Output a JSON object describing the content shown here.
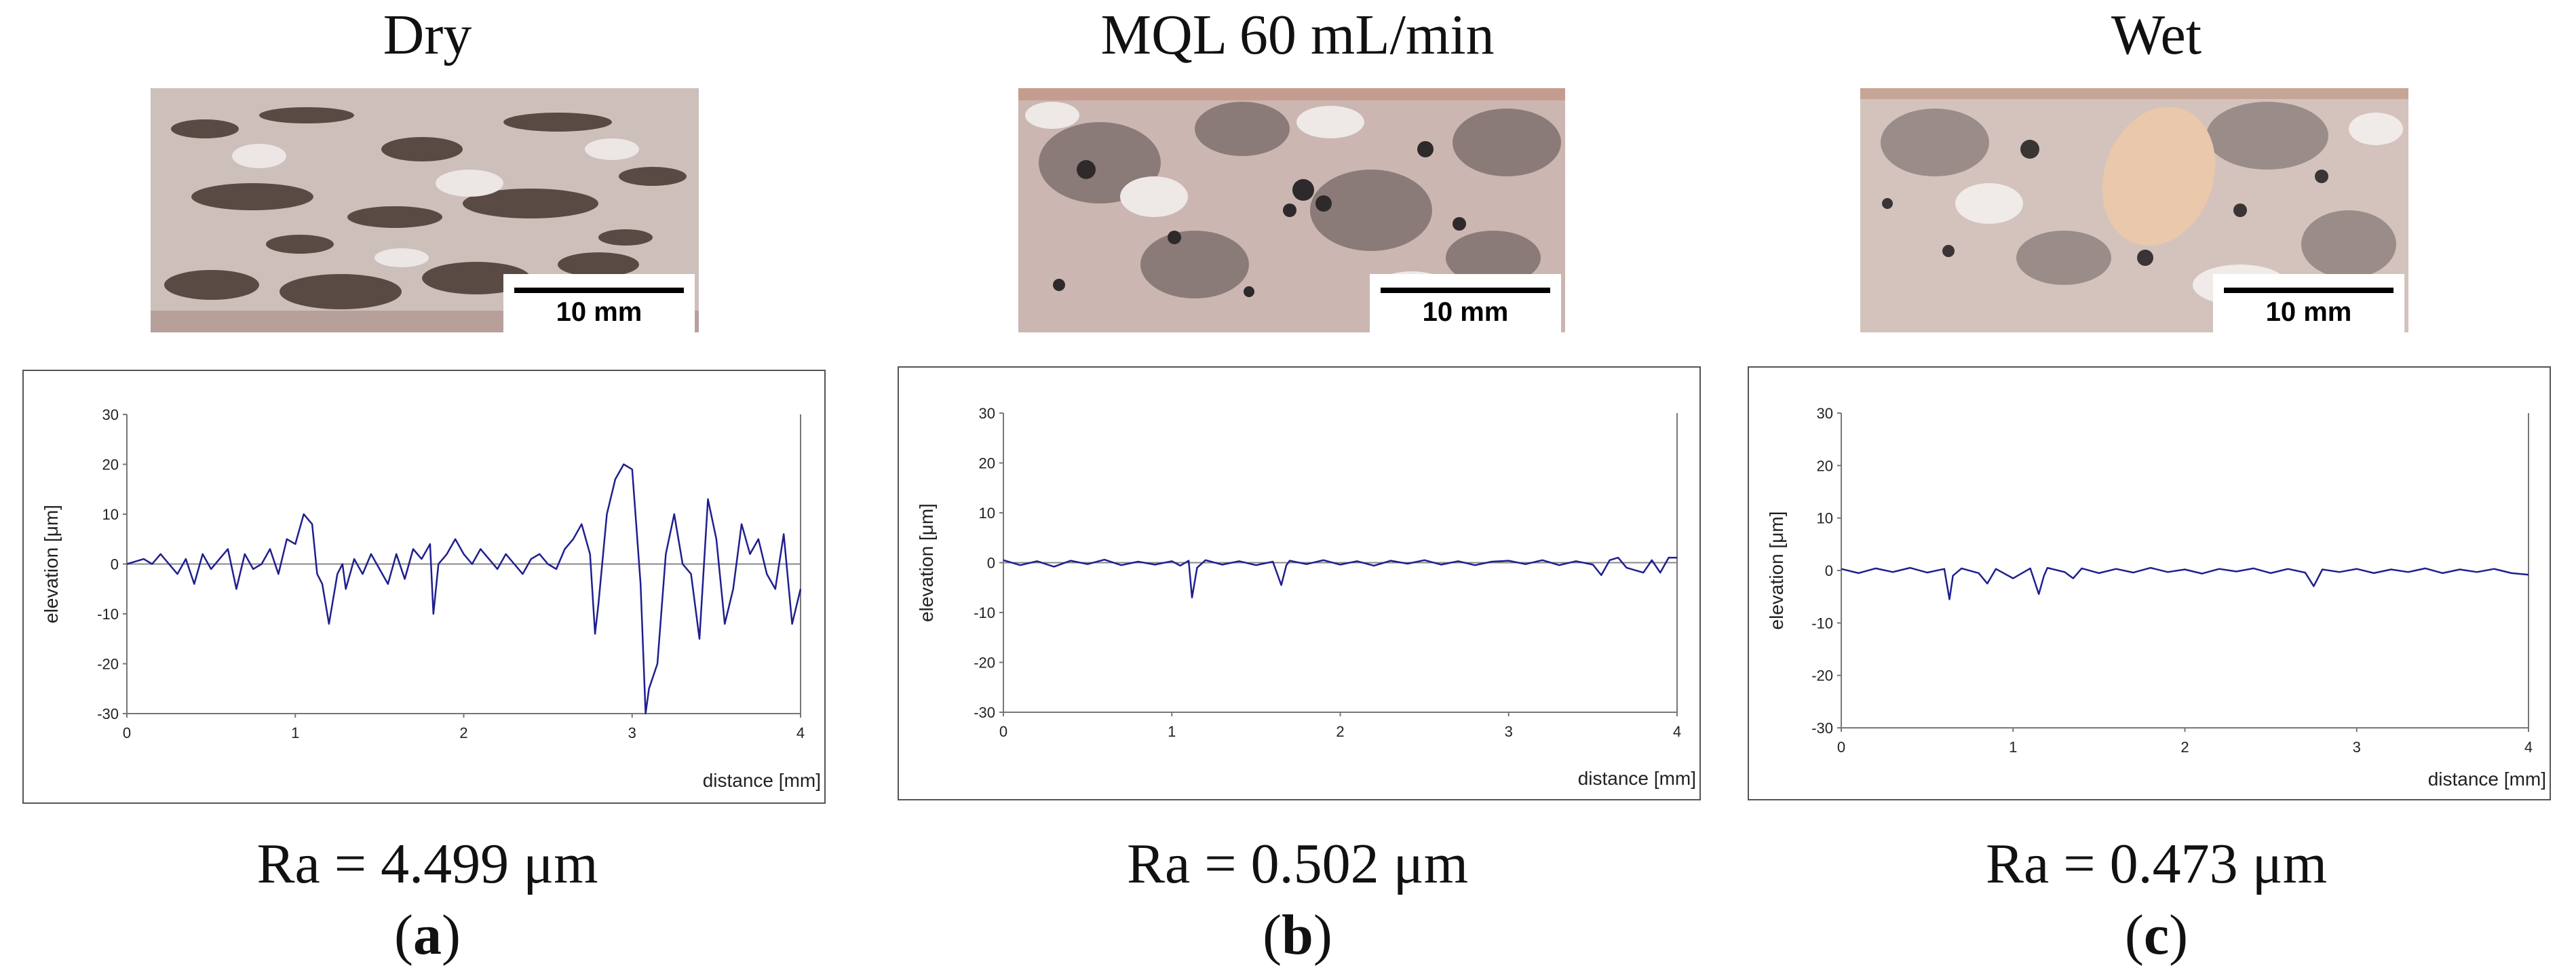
{
  "panels": [
    {
      "condition": "Dry",
      "scale_label": "10 mm",
      "ra": "Ra = 4.499 μm",
      "label_open": "(",
      "label_letter": "a",
      "label_close": ")"
    },
    {
      "condition": "MQL 60 mL/min",
      "scale_label": "10 mm",
      "ra": "Ra = 0.502 μm",
      "label_open": "(",
      "label_letter": "b",
      "label_close": ")"
    },
    {
      "condition": "Wet",
      "scale_label": "10 mm",
      "ra": "Ra = 0.473 μm",
      "label_open": "(",
      "label_letter": "c",
      "label_close": ")"
    }
  ],
  "chart_data": [
    {
      "type": "line",
      "xlabel": "distance [mm]",
      "ylabel": "elevation [μm]",
      "xlim": [
        0,
        4
      ],
      "ylim": [
        -30,
        30
      ],
      "xticks": [
        0,
        1,
        2,
        3,
        4
      ],
      "yticks": [
        30,
        20,
        10,
        0,
        -10,
        -20,
        -30
      ],
      "zero_line": true,
      "grid": false,
      "line_color": "#1f1f8f",
      "series": [
        {
          "x": [
            0,
            0.05,
            0.1,
            0.15,
            0.2,
            0.25,
            0.3,
            0.35,
            0.4,
            0.45,
            0.5,
            0.55,
            0.6,
            0.65,
            0.7,
            0.75,
            0.8,
            0.85,
            0.9,
            0.95,
            1.0,
            1.05,
            1.1,
            1.13,
            1.16,
            1.2,
            1.25,
            1.28,
            1.3,
            1.35,
            1.4,
            1.45,
            1.5,
            1.55,
            1.6,
            1.65,
            1.7,
            1.75,
            1.8,
            1.82,
            1.85,
            1.9,
            1.95,
            2.0,
            2.05,
            2.1,
            2.15,
            2.2,
            2.25,
            2.3,
            2.35,
            2.4,
            2.45,
            2.5,
            2.55,
            2.6,
            2.65,
            2.7,
            2.75,
            2.78,
            2.8,
            2.85,
            2.9,
            2.95,
            3.0,
            3.02,
            3.05,
            3.08,
            3.1,
            3.15,
            3.2,
            3.25,
            3.3,
            3.35,
            3.4,
            3.45,
            3.5,
            3.55,
            3.6,
            3.65,
            3.7,
            3.75,
            3.8,
            3.85,
            3.9,
            3.95,
            4.0
          ],
          "y": [
            0,
            0.5,
            1,
            0,
            2,
            0,
            -2,
            1,
            -4,
            2,
            -1,
            1,
            3,
            -5,
            2,
            -1,
            0,
            3,
            -2,
            5,
            4,
            10,
            8,
            -2,
            -4,
            -12,
            -2,
            0,
            -5,
            1,
            -2,
            2,
            -1,
            -4,
            2,
            -3,
            3,
            1,
            4,
            -10,
            0,
            2,
            5,
            2,
            0,
            3,
            1,
            -1,
            2,
            0,
            -2,
            1,
            2,
            0,
            -1,
            3,
            5,
            8,
            2,
            -14,
            -8,
            10,
            17,
            20,
            19,
            10,
            -4,
            -30,
            -25,
            -20,
            2,
            10,
            0,
            -2,
            -15,
            13,
            5,
            -12,
            -5,
            8,
            2,
            5,
            -2,
            -5,
            6,
            -12,
            -5
          ]
        }
      ]
    },
    {
      "type": "line",
      "xlabel": "distance [mm]",
      "ylabel": "elevation [μm]",
      "xlim": [
        0,
        4
      ],
      "ylim": [
        -30,
        30
      ],
      "xticks": [
        0,
        1,
        2,
        3,
        4
      ],
      "yticks": [
        30,
        20,
        10,
        0,
        -10,
        -20,
        -30
      ],
      "zero_line": true,
      "grid": false,
      "line_color": "#1f1f8f",
      "series": [
        {
          "x": [
            0,
            0.1,
            0.2,
            0.3,
            0.4,
            0.5,
            0.6,
            0.7,
            0.8,
            0.9,
            1.0,
            1.05,
            1.1,
            1.12,
            1.15,
            1.2,
            1.3,
            1.4,
            1.5,
            1.6,
            1.65,
            1.68,
            1.7,
            1.8,
            1.9,
            2.0,
            2.1,
            2.2,
            2.3,
            2.4,
            2.5,
            2.6,
            2.7,
            2.8,
            2.9,
            3.0,
            3.1,
            3.2,
            3.3,
            3.4,
            3.5,
            3.55,
            3.6,
            3.65,
            3.7,
            3.8,
            3.85,
            3.9,
            3.95,
            4.0
          ],
          "y": [
            0.5,
            -0.5,
            0.3,
            -0.8,
            0.4,
            -0.3,
            0.6,
            -0.5,
            0.2,
            -0.4,
            0.3,
            -0.6,
            0.4,
            -7,
            -1,
            0.5,
            -0.4,
            0.3,
            -0.5,
            0.2,
            -4.5,
            -0.5,
            0.4,
            -0.3,
            0.5,
            -0.4,
            0.3,
            -0.6,
            0.4,
            -0.2,
            0.5,
            -0.4,
            0.3,
            -0.5,
            0.2,
            0.4,
            -0.3,
            0.5,
            -0.5,
            0.3,
            -0.4,
            -2.5,
            0.5,
            1,
            -1,
            -2,
            0.5,
            -2,
            1,
            1
          ]
        }
      ]
    },
    {
      "type": "line",
      "xlabel": "distance [mm]",
      "ylabel": "elevation [μm]",
      "xlim": [
        0,
        4
      ],
      "ylim": [
        -30,
        30
      ],
      "xticks": [
        0,
        1,
        2,
        3,
        4
      ],
      "yticks": [
        30,
        20,
        10,
        0,
        -10,
        -20,
        -30
      ],
      "zero_line": false,
      "grid": false,
      "line_color": "#1f1f8f",
      "series": [
        {
          "x": [
            0,
            0.1,
            0.2,
            0.3,
            0.4,
            0.5,
            0.6,
            0.63,
            0.65,
            0.7,
            0.8,
            0.85,
            0.9,
            1.0,
            1.1,
            1.15,
            1.18,
            1.2,
            1.3,
            1.35,
            1.4,
            1.5,
            1.6,
            1.7,
            1.8,
            1.9,
            2.0,
            2.1,
            2.2,
            2.3,
            2.4,
            2.5,
            2.6,
            2.7,
            2.75,
            2.8,
            2.9,
            3.0,
            3.1,
            3.2,
            3.3,
            3.4,
            3.5,
            3.6,
            3.7,
            3.8,
            3.9,
            4.0
          ],
          "y": [
            0.3,
            -0.5,
            0.4,
            -0.3,
            0.5,
            -0.4,
            0.3,
            -5.5,
            -1,
            0.4,
            -0.5,
            -2.5,
            0.3,
            -1.5,
            0.4,
            -4.5,
            -1,
            0.5,
            -0.3,
            -1.5,
            0.4,
            -0.5,
            0.3,
            -0.4,
            0.5,
            -0.3,
            0.2,
            -0.6,
            0.3,
            -0.2,
            0.4,
            -0.5,
            0.3,
            -0.4,
            -3,
            0.2,
            -0.3,
            0.3,
            -0.5,
            0.2,
            -0.3,
            0.4,
            -0.5,
            0.2,
            -0.3,
            0.3,
            -0.5,
            -0.8
          ]
        }
      ]
    }
  ]
}
